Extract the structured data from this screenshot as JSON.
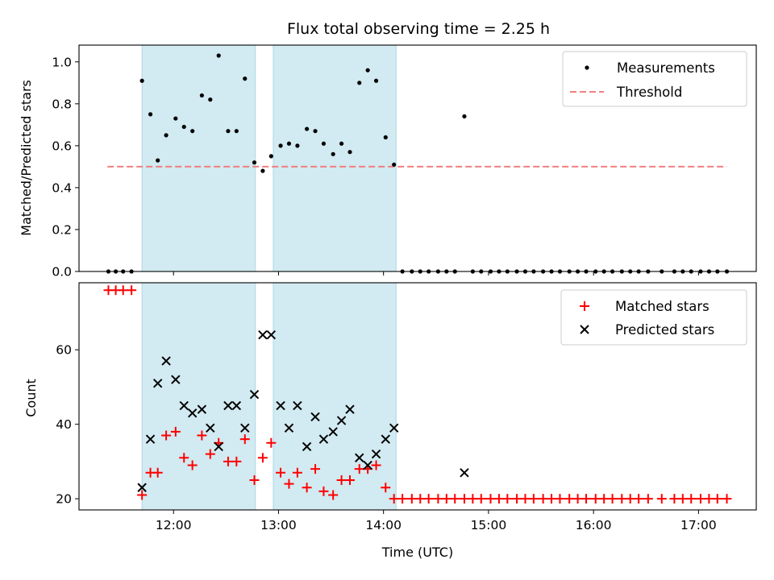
{
  "chart_data": {
    "title": "Flux total observing time = 2.25 h",
    "xlabel": "Time (UTC)",
    "x_tick_labels": [
      "12:00",
      "13:00",
      "14:00",
      "15:00",
      "16:00",
      "17:00"
    ],
    "x_range_hours": [
      11.1,
      17.55
    ],
    "shaded_intervals_hours": [
      [
        11.7,
        12.78
      ],
      [
        12.95,
        14.12
      ]
    ],
    "colors": {
      "measurement": "#000000",
      "threshold": "#f08080",
      "matched": "#ff0000",
      "predicted": "#000000",
      "shade": "#add8e6"
    },
    "top": {
      "type": "scatter",
      "ylabel": "Matched/Predicted stars",
      "ylim": [
        0,
        1.08
      ],
      "y_tick_labels": [
        "0.0",
        "0.2",
        "0.4",
        "0.6",
        "0.8",
        "1.0"
      ],
      "legend_position": "upper right",
      "legend": [
        "Measurements",
        "Threshold"
      ],
      "threshold": {
        "value": 0.5,
        "x_start": 11.37,
        "x_end": 17.27
      },
      "measurements": [
        [
          11.38,
          0.0
        ],
        [
          11.45,
          0.0
        ],
        [
          11.52,
          0.0
        ],
        [
          11.6,
          0.0
        ],
        [
          11.7,
          0.91
        ],
        [
          11.78,
          0.75
        ],
        [
          11.85,
          0.53
        ],
        [
          11.93,
          0.65
        ],
        [
          12.02,
          0.73
        ],
        [
          12.1,
          0.69
        ],
        [
          12.18,
          0.67
        ],
        [
          12.27,
          0.84
        ],
        [
          12.35,
          0.82
        ],
        [
          12.43,
          1.03
        ],
        [
          12.52,
          0.67
        ],
        [
          12.6,
          0.67
        ],
        [
          12.68,
          0.92
        ],
        [
          12.77,
          0.52
        ],
        [
          12.85,
          0.48
        ],
        [
          12.93,
          0.55
        ],
        [
          13.02,
          0.6
        ],
        [
          13.1,
          0.61
        ],
        [
          13.18,
          0.6
        ],
        [
          13.27,
          0.68
        ],
        [
          13.35,
          0.67
        ],
        [
          13.43,
          0.61
        ],
        [
          13.52,
          0.56
        ],
        [
          13.6,
          0.61
        ],
        [
          13.68,
          0.57
        ],
        [
          13.77,
          0.9
        ],
        [
          13.85,
          0.96
        ],
        [
          13.93,
          0.91
        ],
        [
          14.02,
          0.64
        ],
        [
          14.1,
          0.51
        ],
        [
          14.18,
          0.0
        ],
        [
          14.27,
          0.0
        ],
        [
          14.35,
          0.0
        ],
        [
          14.43,
          0.0
        ],
        [
          14.52,
          0.0
        ],
        [
          14.6,
          0.0
        ],
        [
          14.68,
          0.0
        ],
        [
          14.77,
          0.74
        ],
        [
          14.85,
          0.0
        ],
        [
          14.93,
          0.0
        ],
        [
          15.02,
          0.0
        ],
        [
          15.1,
          0.0
        ],
        [
          15.18,
          0.0
        ],
        [
          15.27,
          0.0
        ],
        [
          15.35,
          0.0
        ],
        [
          15.43,
          0.0
        ],
        [
          15.52,
          0.0
        ],
        [
          15.6,
          0.0
        ],
        [
          15.68,
          0.0
        ],
        [
          15.77,
          0.0
        ],
        [
          15.85,
          0.0
        ],
        [
          15.93,
          0.0
        ],
        [
          16.02,
          0.0
        ],
        [
          16.1,
          0.0
        ],
        [
          16.18,
          0.0
        ],
        [
          16.27,
          0.0
        ],
        [
          16.35,
          0.0
        ],
        [
          16.43,
          0.0
        ],
        [
          16.52,
          0.0
        ],
        [
          16.65,
          0.0
        ],
        [
          16.77,
          0.0
        ],
        [
          16.85,
          0.0
        ],
        [
          16.93,
          0.0
        ],
        [
          17.02,
          0.0
        ],
        [
          17.1,
          0.0
        ],
        [
          17.18,
          0.0
        ],
        [
          17.27,
          0.0
        ]
      ]
    },
    "bottom": {
      "type": "scatter",
      "ylabel": "Count",
      "ylim": [
        17,
        78
      ],
      "y_tick_labels": [
        "20",
        "40",
        "60"
      ],
      "legend_position": "upper right",
      "legend": [
        "Matched stars",
        "Predicted stars"
      ],
      "matched": [
        [
          11.38,
          76
        ],
        [
          11.45,
          76
        ],
        [
          11.52,
          76
        ],
        [
          11.6,
          76
        ],
        [
          11.7,
          21
        ],
        [
          11.78,
          27
        ],
        [
          11.85,
          27
        ],
        [
          11.93,
          37
        ],
        [
          12.02,
          38
        ],
        [
          12.1,
          31
        ],
        [
          12.18,
          29
        ],
        [
          12.27,
          37
        ],
        [
          12.35,
          32
        ],
        [
          12.43,
          35
        ],
        [
          12.52,
          30
        ],
        [
          12.6,
          30
        ],
        [
          12.68,
          36
        ],
        [
          12.77,
          25
        ],
        [
          12.85,
          31
        ],
        [
          12.93,
          35
        ],
        [
          13.02,
          27
        ],
        [
          13.1,
          24
        ],
        [
          13.18,
          27
        ],
        [
          13.27,
          23
        ],
        [
          13.35,
          28
        ],
        [
          13.43,
          22
        ],
        [
          13.52,
          21
        ],
        [
          13.6,
          25
        ],
        [
          13.68,
          25
        ],
        [
          13.77,
          28
        ],
        [
          13.85,
          28
        ],
        [
          13.93,
          29
        ],
        [
          14.02,
          23
        ],
        [
          14.1,
          20
        ],
        [
          14.18,
          20
        ],
        [
          14.27,
          20
        ],
        [
          14.35,
          20
        ],
        [
          14.43,
          20
        ],
        [
          14.52,
          20
        ],
        [
          14.6,
          20
        ],
        [
          14.68,
          20
        ],
        [
          14.77,
          20
        ],
        [
          14.85,
          20
        ],
        [
          14.93,
          20
        ],
        [
          15.02,
          20
        ],
        [
          15.1,
          20
        ],
        [
          15.18,
          20
        ],
        [
          15.27,
          20
        ],
        [
          15.35,
          20
        ],
        [
          15.43,
          20
        ],
        [
          15.52,
          20
        ],
        [
          15.6,
          20
        ],
        [
          15.68,
          20
        ],
        [
          15.77,
          20
        ],
        [
          15.85,
          20
        ],
        [
          15.93,
          20
        ],
        [
          16.02,
          20
        ],
        [
          16.1,
          20
        ],
        [
          16.18,
          20
        ],
        [
          16.27,
          20
        ],
        [
          16.35,
          20
        ],
        [
          16.43,
          20
        ],
        [
          16.52,
          20
        ],
        [
          16.65,
          20
        ],
        [
          16.77,
          20
        ],
        [
          16.85,
          20
        ],
        [
          16.93,
          20
        ],
        [
          17.02,
          20
        ],
        [
          17.1,
          20
        ],
        [
          17.18,
          20
        ],
        [
          17.27,
          20
        ]
      ],
      "predicted": [
        [
          11.7,
          23
        ],
        [
          11.78,
          36
        ],
        [
          11.85,
          51
        ],
        [
          11.93,
          57
        ],
        [
          12.02,
          52
        ],
        [
          12.1,
          45
        ],
        [
          12.18,
          43
        ],
        [
          12.27,
          44
        ],
        [
          12.35,
          39
        ],
        [
          12.43,
          34
        ],
        [
          12.52,
          45
        ],
        [
          12.6,
          45
        ],
        [
          12.68,
          39
        ],
        [
          12.77,
          48
        ],
        [
          12.85,
          64
        ],
        [
          12.93,
          64
        ],
        [
          13.02,
          45
        ],
        [
          13.1,
          39
        ],
        [
          13.18,
          45
        ],
        [
          13.27,
          34
        ],
        [
          13.35,
          42
        ],
        [
          13.43,
          36
        ],
        [
          13.52,
          38
        ],
        [
          13.6,
          41
        ],
        [
          13.68,
          44
        ],
        [
          13.77,
          31
        ],
        [
          13.85,
          29
        ],
        [
          13.93,
          32
        ],
        [
          14.02,
          36
        ],
        [
          14.1,
          39
        ],
        [
          14.77,
          27
        ]
      ]
    }
  }
}
